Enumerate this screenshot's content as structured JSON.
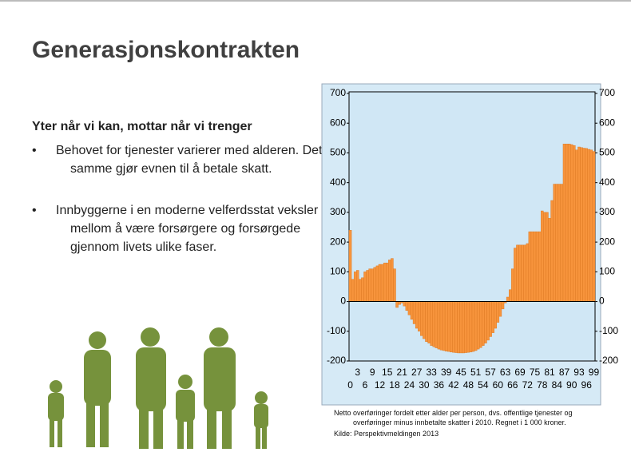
{
  "slide": {
    "title": "Generasjonskontrakten",
    "subtitle": "Yter når vi kan, mottar når vi trenger",
    "bullets": [
      "Behovet for tjenester varierer med alderen. Det samme gjør evnen til å betale skatt.",
      "Innbyggerne i en moderne velferdsstat veksler mellom å være forsørgere og forsørgede gjennom livets ulike faser."
    ],
    "caption": [
      "Netto overføringer fordelt etter alder per person, dvs. offentlige tjenester og",
      "overføringer minus innbetalte skatter i 2010.  Regnet i 1 000 kroner.",
      "Kilde: Perspektivmeldingen 2013"
    ]
  },
  "chart_data": {
    "type": "bar",
    "color": "#f7943c",
    "categories": [
      0,
      null,
      null,
      3,
      null,
      null,
      6,
      null,
      null,
      9,
      null,
      null,
      12,
      null,
      null,
      15,
      null,
      null,
      18,
      null,
      null,
      21,
      null,
      null,
      24,
      null,
      null,
      27,
      null,
      null,
      30,
      null,
      null,
      33,
      null,
      null,
      36,
      null,
      null,
      39,
      null,
      null,
      42,
      null,
      null,
      45,
      null,
      null,
      48,
      null,
      null,
      51,
      null,
      null,
      54,
      null,
      null,
      57,
      null,
      null,
      60,
      null,
      null,
      63,
      null,
      null,
      66,
      null,
      null,
      69,
      null,
      null,
      72,
      null,
      null,
      75,
      null,
      null,
      78,
      null,
      null,
      81,
      null,
      null,
      84,
      null,
      null,
      87,
      null,
      null,
      90,
      null,
      null,
      93,
      null,
      null,
      96,
      null,
      null,
      99
    ],
    "values": [
      240,
      75,
      100,
      105,
      75,
      80,
      100,
      105,
      110,
      110,
      115,
      120,
      125,
      125,
      130,
      130,
      140,
      145,
      110,
      -20,
      -10,
      -5,
      -15,
      -30,
      -45,
      -60,
      -75,
      -90,
      -100,
      -115,
      -125,
      -135,
      -140,
      -148,
      -152,
      -156,
      -160,
      -163,
      -165,
      -167,
      -168,
      -170,
      -171,
      -172,
      -173,
      -173,
      -173,
      -172,
      -171,
      -170,
      -168,
      -165,
      -160,
      -155,
      -148,
      -140,
      -130,
      -118,
      -105,
      -90,
      -70,
      -50,
      -25,
      -5,
      15,
      40,
      110,
      180,
      190,
      190,
      190,
      190,
      195,
      235,
      235,
      235,
      235,
      235,
      305,
      300,
      300,
      280,
      340,
      395,
      395,
      395,
      395,
      530,
      530,
      530,
      528,
      525,
      510,
      520,
      518,
      516,
      515,
      512,
      510,
      505
    ],
    "ylim": [
      -200,
      700
    ],
    "yticks": [
      -200,
      -100,
      0,
      100,
      200,
      300,
      400,
      500,
      600,
      700
    ],
    "y2lim": [
      -200,
      700
    ],
    "y2ticks": [
      -200,
      -100,
      0,
      100,
      200,
      300,
      400,
      500,
      600,
      700
    ]
  }
}
